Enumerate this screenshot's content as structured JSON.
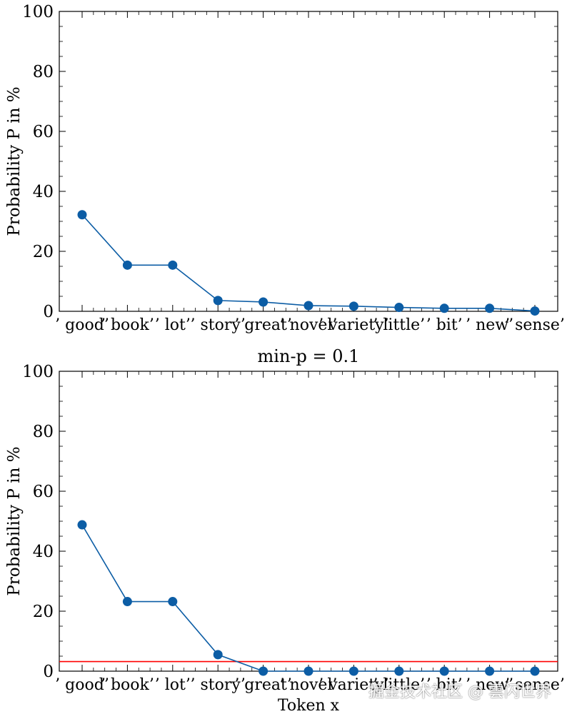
{
  "chart_data": [
    {
      "type": "line",
      "title": "",
      "xlabel": "",
      "ylabel": "Probability P in %",
      "ylim": [
        0,
        100
      ],
      "yticks": [
        0,
        20,
        40,
        60,
        80,
        100
      ],
      "categories": [
        "’ good’",
        "’ book’",
        "’ lot’",
        "’ story’",
        "’ great’",
        "’ novel’",
        "’ variety’",
        "’ little’",
        "’ bit’",
        "’ new’",
        "’ sense’"
      ],
      "series": [
        {
          "name": "P",
          "color": "#0c5da5",
          "values": [
            32.2,
            15.4,
            15.4,
            3.6,
            3.1,
            1.9,
            1.7,
            1.3,
            1.0,
            1.0,
            0.1
          ]
        }
      ]
    },
    {
      "type": "line",
      "title": "min-p = 0.1",
      "xlabel": "Token x",
      "ylabel": "Probability P in %",
      "ylim": [
        0,
        100
      ],
      "yticks": [
        0,
        20,
        40,
        60,
        80,
        100
      ],
      "categories": [
        "’ good’",
        "’ book’",
        "’ lot’",
        "’ story’",
        "’ great’",
        "’ novel’",
        "’ variety’",
        "’ little’",
        "’ bit’",
        "’ new’",
        "’ sense’"
      ],
      "series": [
        {
          "name": "P",
          "color": "#0c5da5",
          "values": [
            48.8,
            23.2,
            23.2,
            5.5,
            0,
            0,
            0,
            0,
            0,
            0,
            0
          ]
        }
      ],
      "threshold": {
        "value": 3.2,
        "color": "#ff0000"
      }
    }
  ],
  "watermark": "掘金技术社区 @ 雲闪世界"
}
